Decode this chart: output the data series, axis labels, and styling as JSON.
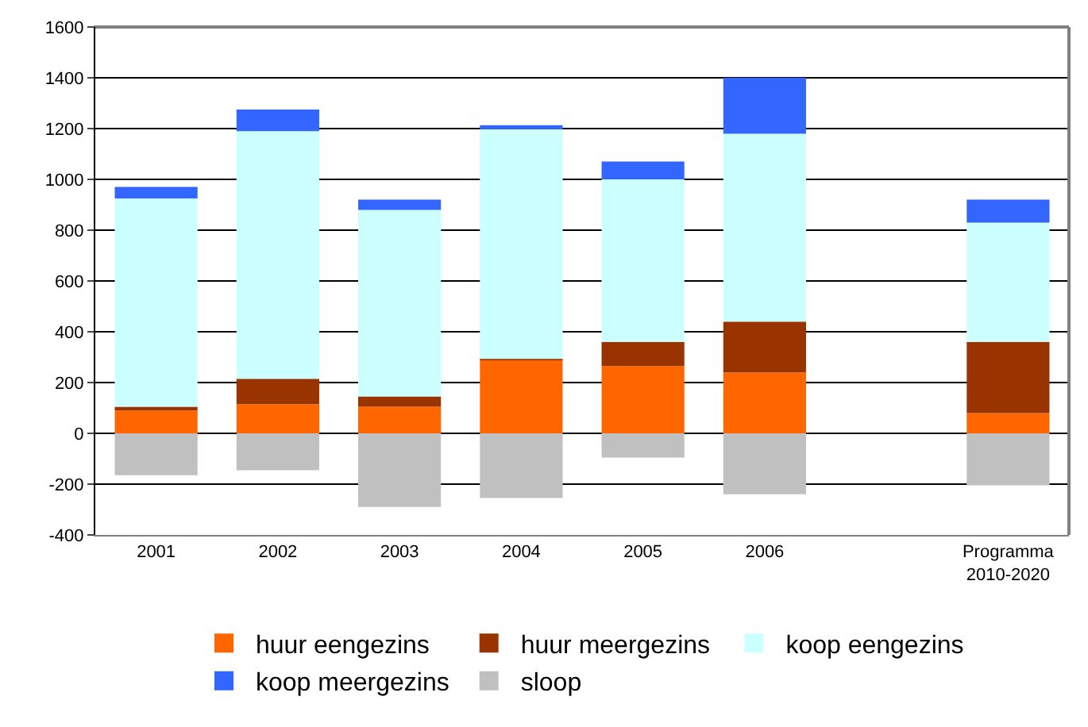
{
  "chart_data": {
    "type": "bar",
    "stacked": true,
    "categories": [
      "2001",
      "2002",
      "2003",
      "2004",
      "2005",
      "2006",
      null,
      "Programma\n2010-2020"
    ],
    "series": [
      {
        "name": "huur eengezins",
        "color": "#ff6600",
        "values": [
          90,
          115,
          105,
          290,
          265,
          240,
          null,
          80
        ]
      },
      {
        "name": "huur meergezins",
        "color": "#993300",
        "values": [
          15,
          100,
          40,
          3,
          95,
          200,
          null,
          280
        ]
      },
      {
        "name": "koop eengezins",
        "color": "#ccffff",
        "values": [
          820,
          975,
          735,
          905,
          640,
          740,
          null,
          470
        ]
      },
      {
        "name": "koop meergezins",
        "color": "#3366ff",
        "values": [
          45,
          85,
          40,
          15,
          70,
          220,
          null,
          90
        ]
      },
      {
        "name": "sloop",
        "color": "#c0c0c0",
        "values": [
          -165,
          -145,
          -290,
          -255,
          -95,
          -240,
          null,
          -205
        ]
      }
    ],
    "ylim": [
      -400,
      1600
    ],
    "yticks": [
      -400,
      -200,
      0,
      200,
      400,
      600,
      800,
      1000,
      1200,
      1400,
      1600
    ],
    "grid": "y",
    "legend": "bottom"
  }
}
